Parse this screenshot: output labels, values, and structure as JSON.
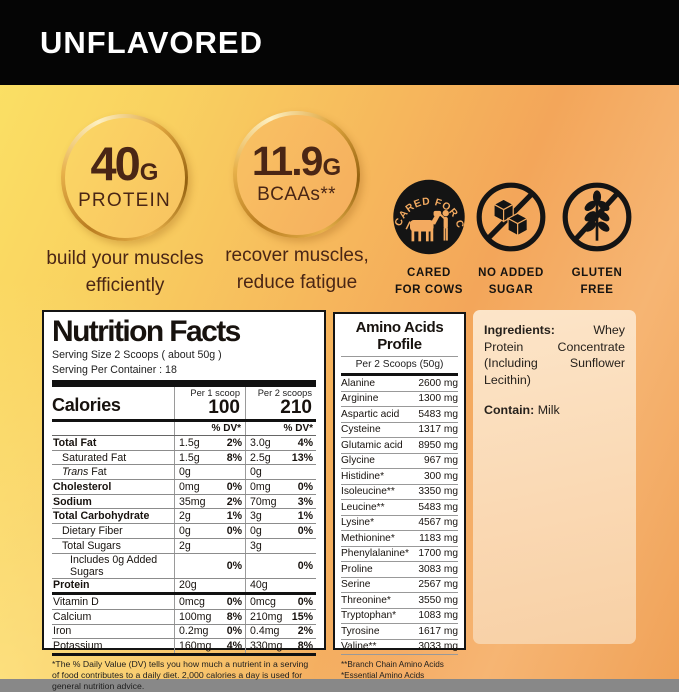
{
  "banner": {
    "flavor": "UNFLAVORED"
  },
  "highlights": [
    {
      "value": "40",
      "unit": "G",
      "name": "PROTEIN",
      "caption_line1": "build your muscles",
      "caption_line2": "efficiently"
    },
    {
      "value": "11.9",
      "unit": "G",
      "name": "BCAAs**",
      "caption_line1": "recover muscles,",
      "caption_line2": "reduce fatigue"
    }
  ],
  "badges": [
    {
      "icon": "cow-icon",
      "arc_text": "CARED FOR COWS",
      "label_line1": "CARED",
      "label_line2": "FOR COWS"
    },
    {
      "icon": "no-added-sugar-icon",
      "label_line1": "NO ADDED",
      "label_line2": "SUGAR"
    },
    {
      "icon": "gluten-free-icon",
      "label_line1": "GLUTEN",
      "label_line2": "FREE"
    }
  ],
  "nutrition": {
    "title": "Nutrition Facts",
    "serving_size": "Serving Size 2 Scoops ( about 50g )",
    "servings_per_container": "Serving Per Container : 18",
    "calories_label": "Calories",
    "col1_header": "Per 1 scoop",
    "col1_calories": "100",
    "col2_header": "Per 2 scoops",
    "col2_calories": "210",
    "dv_header": "% DV*",
    "rows": [
      {
        "name": "Total Fat",
        "bold": true,
        "indent": 0,
        "a1": "1.5g",
        "d1": "2%",
        "a2": "3.0g",
        "d2": "4%"
      },
      {
        "name": "Saturated Fat",
        "bold": false,
        "indent": 1,
        "a1": "1.5g",
        "d1": "8%",
        "a2": "2.5g",
        "d2": "13%"
      },
      {
        "name": "Trans Fat",
        "bold": false,
        "indent": 1,
        "italic_first": true,
        "a1": "0g",
        "d1": "",
        "a2": "0g",
        "d2": ""
      },
      {
        "name": "Cholesterol",
        "bold": true,
        "indent": 0,
        "a1": "0mg",
        "d1": "0%",
        "a2": "0mg",
        "d2": "0%"
      },
      {
        "name": "Sodium",
        "bold": true,
        "indent": 0,
        "a1": "35mg",
        "d1": "2%",
        "a2": "70mg",
        "d2": "3%"
      },
      {
        "name": "Total Carbohydrate",
        "bold": true,
        "indent": 0,
        "a1": "2g",
        "d1": "1%",
        "a2": "3g",
        "d2": "1%"
      },
      {
        "name": "Dietary Fiber",
        "bold": false,
        "indent": 1,
        "a1": "0g",
        "d1": "0%",
        "a2": "0g",
        "d2": "0%"
      },
      {
        "name": "Total Sugars",
        "bold": false,
        "indent": 1,
        "a1": "2g",
        "d1": "",
        "a2": "3g",
        "d2": ""
      },
      {
        "name": "Includes 0g Added Sugars",
        "bold": false,
        "indent": 2,
        "a1": "",
        "d1": "0%",
        "a2": "",
        "d2": "0%"
      },
      {
        "name": "Protein",
        "bold": true,
        "indent": 0,
        "a1": "20g",
        "d1": "",
        "a2": "40g",
        "d2": "",
        "thick_after": true
      },
      {
        "name": "Vitamin D",
        "bold": false,
        "indent": 0,
        "a1": "0mcg",
        "d1": "0%",
        "a2": "0mcg",
        "d2": "0%"
      },
      {
        "name": "Calcium",
        "bold": false,
        "indent": 0,
        "a1": "100mg",
        "d1": "8%",
        "a2": "210mg",
        "d2": "15%"
      },
      {
        "name": "Iron",
        "bold": false,
        "indent": 0,
        "a1": "0.2mg",
        "d1": "0%",
        "a2": "0.4mg",
        "d2": "2%"
      },
      {
        "name": "Potassium",
        "bold": false,
        "indent": 0,
        "a1": "160mg",
        "d1": "4%",
        "a2": "330mg",
        "d2": "8%",
        "thick_after": true
      }
    ],
    "footnote": "*The % Daily Value (DV) tells you how much a nutrient in a serving of food contributes to a daily diet. 2,000 calories a day is used for general nutrition advice."
  },
  "amino": {
    "title": "Amino Acids Profile",
    "subtitle": "Per 2 Scoops (50g)",
    "rows": [
      {
        "name": "Alanine",
        "value": "2600 mg"
      },
      {
        "name": "Arginine",
        "value": "1300 mg"
      },
      {
        "name": "Aspartic acid",
        "value": "5483 mg"
      },
      {
        "name": "Cysteine",
        "value": "1317 mg"
      },
      {
        "name": "Glutamic acid",
        "value": "8950 mg"
      },
      {
        "name": "Glycine",
        "value": "967 mg"
      },
      {
        "name": "Histidine*",
        "value": "300 mg"
      },
      {
        "name": "Isoleucine**",
        "value": "3350 mg"
      },
      {
        "name": "Leucine**",
        "value": "5483 mg"
      },
      {
        "name": "Lysine*",
        "value": "4567 mg"
      },
      {
        "name": "Methionine*",
        "value": "1183 mg"
      },
      {
        "name": "Phenylalanine*",
        "value": "1700 mg"
      },
      {
        "name": "Proline",
        "value": "3083 mg"
      },
      {
        "name": "Serine",
        "value": "2567 mg"
      },
      {
        "name": "Threonine*",
        "value": "3550 mg"
      },
      {
        "name": "Tryptophan*",
        "value": "1083 mg"
      },
      {
        "name": "Tyrosine",
        "value": "1617 mg"
      },
      {
        "name": "Valine**",
        "value": "3033 mg"
      }
    ],
    "footnote1": "**Branch Chain Amino Acids",
    "footnote2": "*Essential Amino Acids"
  },
  "ingredients": {
    "label": "Ingredients:",
    "text": "Whey Protein Concentrate (Including Sunflower Lecithin)",
    "contains_label": "Contain:",
    "contains_text": "Milk"
  },
  "colors": {
    "banner_bg": "#050505",
    "bg_yellow": "#fbe265",
    "bg_orange": "#f3a65a",
    "ring_gold": "#d99b36",
    "text_brown": "#4a2615",
    "panel_border": "#141414",
    "ingredients_bg": "#fad9b4"
  }
}
